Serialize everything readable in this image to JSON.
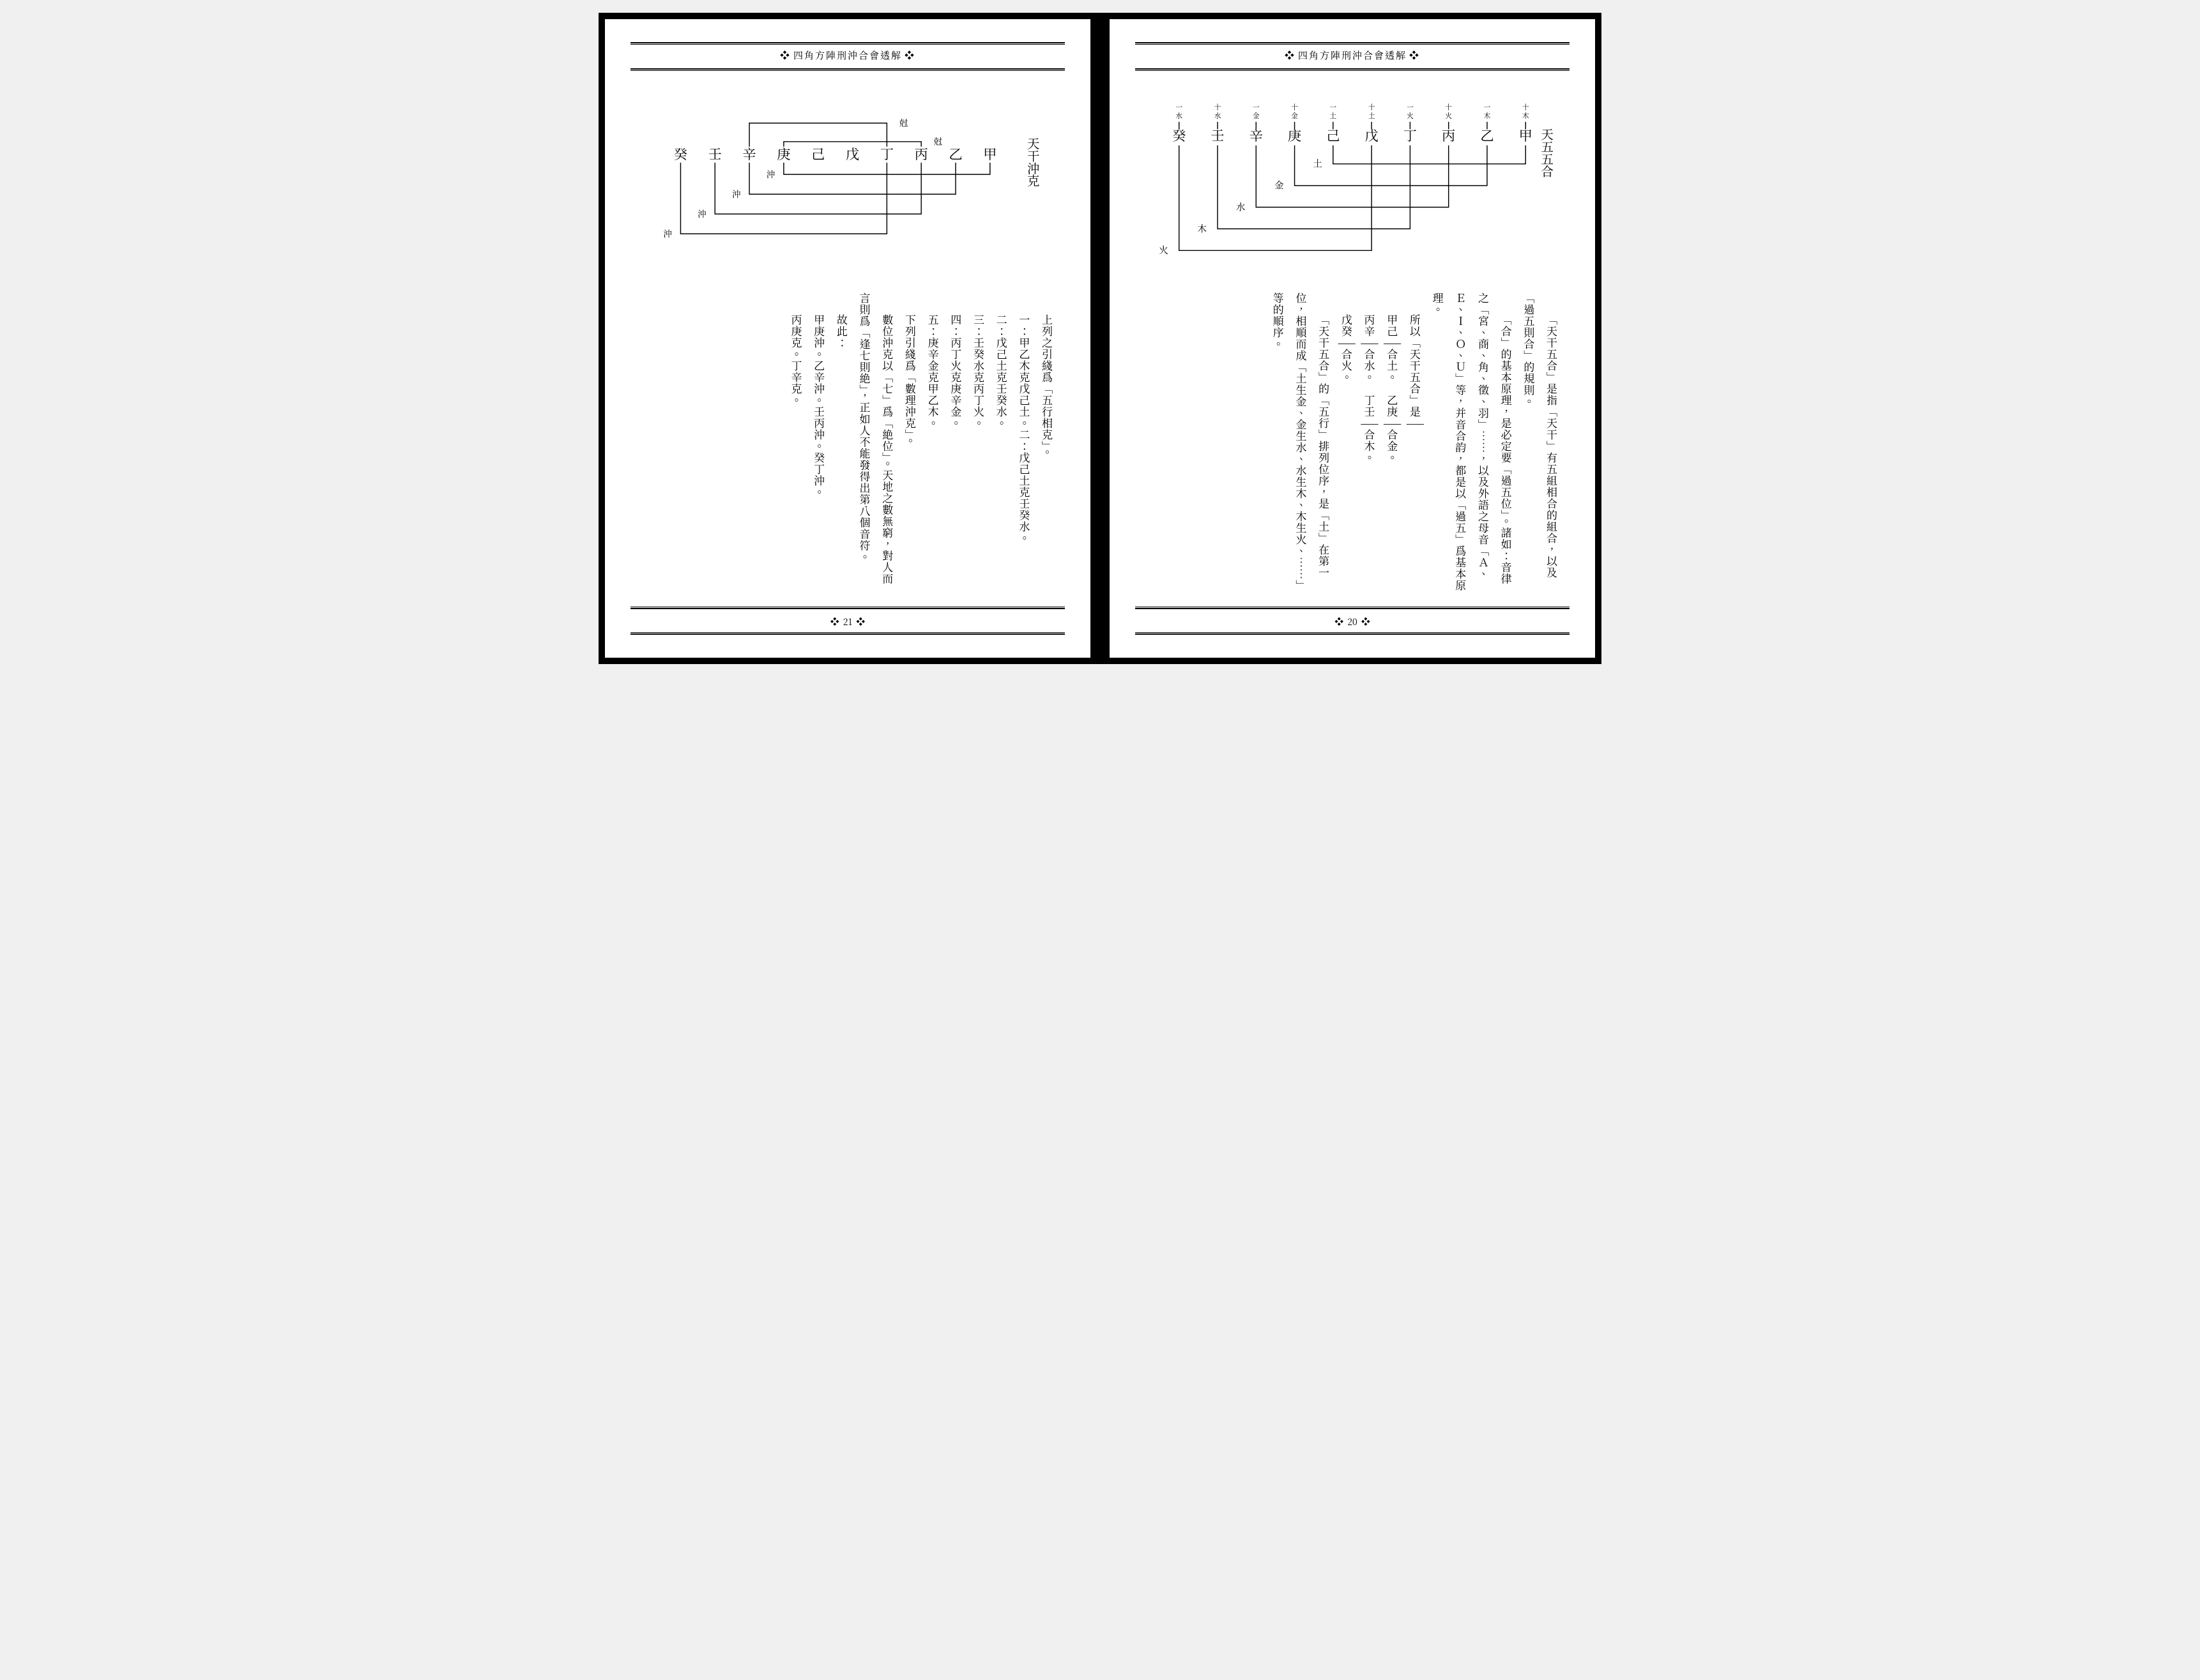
{
  "book": {
    "header_title": "四角方陣刑沖合會透解",
    "left_page_number": "21",
    "right_page_number": "20"
  },
  "right_page": {
    "section_title": "天五五合",
    "diagram": {
      "stems": [
        "癸",
        "壬",
        "辛",
        "庚",
        "己",
        "戊",
        "丁",
        "丙",
        "乙",
        "甲"
      ],
      "stem_elements_top": [
        "一水",
        "十水",
        "一金",
        "十金",
        "一土",
        "十土",
        "一火",
        "十火",
        "一木",
        "十木"
      ],
      "combo_labels_left": [
        "土",
        "金",
        "水",
        "木",
        "火"
      ],
      "line_color": "#000000",
      "text_size": 22,
      "small_text_size": 11
    },
    "paragraphs": [
      "「天干五合」是指「天干」有五組相合的組合，以及「過五則合」的規則。",
      "「合」的基本原理，是必定要「過五位」。諸如：音律之「宮、商、角、徵、羽」……，以及外語之母音「Ａ、Ｅ、Ｉ、Ｏ、Ｕ」等，并音合韵，都是以「過五」爲基本原理。",
      "所以「天干五合」是——",
      "甲己——合土。　乙庚——合金。",
      "丙辛——合水。　丁壬——合木。",
      "戊癸——合火。",
      "「天干五合」的「五行」排列位序，是「土」在第一位，相順而成「土生金、金生水、水生木、木生火、……」等的順序。"
    ]
  },
  "left_page": {
    "section_title": "天干沖克",
    "diagram": {
      "stems": [
        "癸",
        "壬",
        "辛",
        "庚",
        "己",
        "戊",
        "丁",
        "丙",
        "乙",
        "甲"
      ],
      "top_labels": [
        "尅",
        "尅"
      ],
      "bottom_labels": [
        "沖",
        "沖",
        "沖",
        "沖"
      ],
      "line_color": "#000000",
      "text_size": 22
    },
    "paragraphs": [
      "上列之引綫爲「五行相克」。",
      "一：甲乙木克戊己土。二：戊己土克壬癸水。",
      "二：戊己土克壬癸水。",
      "三：壬癸水克丙丁火。",
      "四：丙丁火克庚辛金。",
      "五：庚辛金克甲乙木。",
      "下列引綫爲「數理沖克」。",
      "數位沖克以「七」爲「絶位」。天地之數無窮，對人而言則爲「逢七則絶」，正如人不能發得出第八個音符。",
      "故此：",
      "甲庚沖。乙辛沖。壬丙沖。癸丁沖。",
      "丙庚克。丁辛克。"
    ]
  },
  "colors": {
    "ink": "#000000",
    "paper": "#ffffff",
    "stroke_width": 1.5
  }
}
